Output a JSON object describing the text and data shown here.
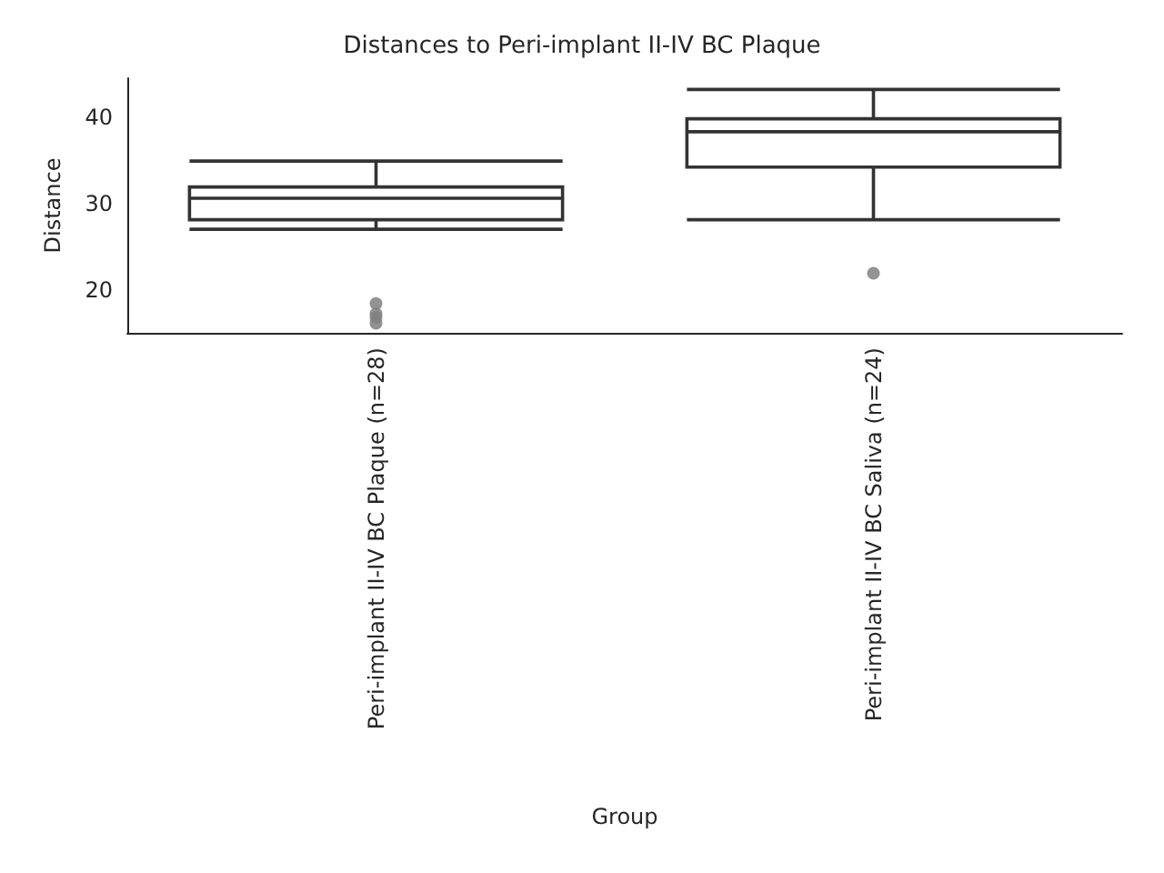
{
  "chart_data": {
    "type": "box",
    "title": "Distances to Peri-implant II-IV BC Plaque",
    "xlabel": "Group",
    "ylabel": "Distance",
    "categories": [
      "Peri-implant II-IV BC Plaque (n=28)",
      "Peri-implant II-IV BC Saliva (n=24)"
    ],
    "color": "#333333",
    "boxes": [
      {
        "low": 27.0,
        "q1": 28.1,
        "median": 30.6,
        "q3": 31.9,
        "high": 34.9,
        "outliers": [
          18.4,
          17.2,
          16.8,
          16.1
        ]
      },
      {
        "low": 28.1,
        "q1": 34.2,
        "median": 38.3,
        "q3": 39.8,
        "high": 43.2,
        "outliers": [
          21.9
        ]
      }
    ],
    "ylim": [
      15,
      44.5
    ],
    "yticks": [
      20,
      30,
      40
    ],
    "grid": false
  }
}
